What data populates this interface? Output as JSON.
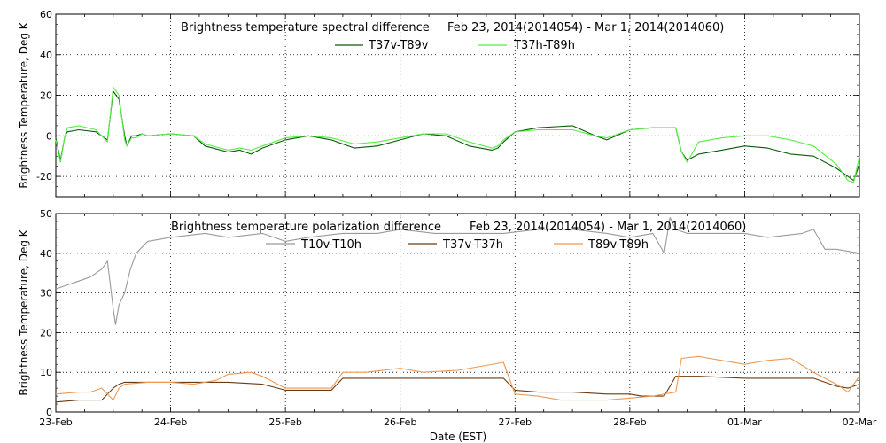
{
  "chart_data": [
    {
      "type": "line",
      "title": "Brightness temperature spectral difference",
      "date_range": "Feb 23, 2014(2014054) - Mar  1, 2014(2014060)",
      "xlabel": "",
      "ylabel": "Brightness Temperature, Deg K",
      "ylim": [
        -30,
        60
      ],
      "yticks": [
        "-20",
        "0",
        "20",
        "40",
        "60"
      ],
      "xlim": [
        0,
        7
      ],
      "grid": true,
      "legend_position": "top-center",
      "series": [
        {
          "name": "T37v-T89v",
          "color": "#0a5a0a",
          "x": [
            0,
            0.04,
            0.08,
            0.1,
            0.2,
            0.35,
            0.45,
            0.5,
            0.55,
            0.6,
            0.62,
            0.66,
            0.7,
            0.75,
            0.8,
            1.0,
            1.2,
            1.3,
            1.5,
            1.6,
            1.7,
            1.8,
            1.9,
            2.0,
            2.2,
            2.4,
            2.6,
            2.8,
            3.0,
            3.2,
            3.4,
            3.6,
            3.8,
            3.85,
            3.9,
            4.0,
            4.2,
            4.5,
            4.7,
            4.8,
            5.0,
            5.2,
            5.4,
            5.45,
            5.5,
            5.6,
            5.8,
            6.0,
            6.2,
            6.4,
            6.6,
            6.8,
            6.9,
            6.95,
            7.0
          ],
          "y": [
            -1,
            -12,
            0,
            2,
            3,
            2,
            -2,
            22,
            18,
            0,
            -5,
            0,
            0,
            1,
            0,
            1,
            0,
            -5,
            -8,
            -7,
            -9,
            -6,
            -4,
            -2,
            0,
            -2,
            -6,
            -5,
            -2,
            1,
            0,
            -5,
            -7,
            -6,
            -3,
            2,
            4,
            5,
            0,
            -2,
            3,
            4,
            4,
            -8,
            -12,
            -9,
            -7,
            -5,
            -6,
            -9,
            -10,
            -16,
            -20,
            -22,
            -14
          ]
        },
        {
          "name": "T37h-T89h",
          "color": "#55ee44",
          "x": [
            0,
            0.04,
            0.08,
            0.1,
            0.2,
            0.35,
            0.45,
            0.5,
            0.55,
            0.6,
            0.62,
            0.66,
            0.7,
            0.75,
            0.8,
            1.0,
            1.2,
            1.3,
            1.5,
            1.6,
            1.7,
            1.8,
            1.9,
            2.0,
            2.2,
            2.4,
            2.6,
            2.8,
            3.0,
            3.2,
            3.4,
            3.6,
            3.8,
            3.85,
            3.9,
            4.0,
            4.2,
            4.5,
            4.7,
            4.8,
            5.0,
            5.2,
            5.4,
            5.45,
            5.5,
            5.6,
            5.8,
            6.0,
            6.2,
            6.4,
            6.6,
            6.8,
            6.9,
            6.95,
            7.0
          ],
          "y": [
            -2,
            -13,
            0,
            4,
            5,
            3,
            -3,
            24,
            20,
            -2,
            -5,
            -1,
            -1,
            1,
            0,
            1,
            0,
            -4,
            -7,
            -6,
            -7,
            -5,
            -3,
            -1,
            0,
            -1,
            -4,
            -3,
            -1,
            1,
            1,
            -3,
            -6,
            -5,
            -2,
            2,
            3,
            3,
            0,
            -1,
            3,
            4,
            4,
            -8,
            -13,
            -3,
            -1,
            0,
            0,
            -2,
            -5,
            -14,
            -22,
            -23,
            -10
          ]
        }
      ]
    },
    {
      "type": "line",
      "title": "Brightness temperature polarization difference",
      "date_range": "Feb 23, 2014(2014054) - Mar  1, 2014(2014060)",
      "xlabel": "Date (EST)",
      "ylabel": "Brightness Temperature, Deg K",
      "ylim": [
        0,
        50
      ],
      "yticks": [
        "0",
        "10",
        "20",
        "30",
        "40",
        "50"
      ],
      "xlim": [
        0,
        7
      ],
      "xticks": [
        "23-Feb",
        "24-Feb",
        "25-Feb",
        "26-Feb",
        "27-Feb",
        "28-Feb",
        "01-Mar",
        "02-Mar"
      ],
      "grid": true,
      "legend_position": "top-center",
      "series": [
        {
          "name": "T10v-T10h",
          "color": "#9a9a9a",
          "x": [
            0,
            0.1,
            0.2,
            0.3,
            0.4,
            0.45,
            0.5,
            0.52,
            0.55,
            0.6,
            0.65,
            0.7,
            0.8,
            1.0,
            1.3,
            1.5,
            1.8,
            2.0,
            2.2,
            2.5,
            2.8,
            3.0,
            3.3,
            3.6,
            3.9,
            4.2,
            4.5,
            4.8,
            5.0,
            5.2,
            5.3,
            5.35,
            5.4,
            5.5,
            5.8,
            6.0,
            6.2,
            6.5,
            6.6,
            6.7,
            6.8,
            7.0
          ],
          "y": [
            31,
            32,
            33,
            34,
            36,
            38,
            26,
            22,
            27,
            30,
            36,
            40,
            43,
            44,
            45,
            44,
            45,
            43,
            44,
            45,
            45,
            46,
            45,
            45,
            45,
            46,
            46,
            45,
            44,
            45,
            40,
            49,
            46,
            45,
            45,
            45,
            44,
            45,
            46,
            41,
            41,
            40
          ]
        },
        {
          "name": "T37v-T37h",
          "color": "#6b3a10",
          "x": [
            0,
            0.2,
            0.4,
            0.5,
            0.55,
            0.6,
            0.8,
            1.0,
            1.2,
            1.5,
            1.8,
            2.0,
            2.2,
            2.4,
            2.5,
            2.7,
            3.0,
            3.3,
            3.6,
            3.9,
            4.0,
            4.2,
            4.5,
            4.8,
            5.0,
            5.1,
            5.3,
            5.4,
            5.6,
            6.0,
            6.3,
            6.6,
            6.8,
            6.9,
            7.0
          ],
          "y": [
            2.5,
            3,
            3,
            6,
            7,
            7.5,
            7.5,
            7.5,
            7.5,
            7.5,
            7,
            5.5,
            5.5,
            5.5,
            8.5,
            8.5,
            8.5,
            8.5,
            8.5,
            8.5,
            5.5,
            5,
            5,
            4.5,
            4.5,
            4,
            4,
            9,
            9,
            8.5,
            8.5,
            8.5,
            6.5,
            6,
            7
          ]
        },
        {
          "name": "T89v-T89h",
          "color": "#ee9955",
          "x": [
            0,
            0.2,
            0.3,
            0.4,
            0.5,
            0.55,
            0.6,
            0.8,
            1.0,
            1.2,
            1.4,
            1.5,
            1.7,
            1.8,
            2.0,
            2.2,
            2.4,
            2.5,
            2.7,
            3.0,
            3.2,
            3.5,
            3.7,
            3.9,
            4.0,
            4.2,
            4.4,
            4.6,
            4.8,
            5.0,
            5.2,
            5.4,
            5.45,
            5.6,
            5.8,
            6.0,
            6.2,
            6.4,
            6.6,
            6.8,
            6.9,
            7.0
          ],
          "y": [
            4.5,
            5,
            5,
            6,
            3,
            6,
            7,
            7.5,
            7.5,
            7,
            8,
            9.5,
            10,
            9,
            6,
            6,
            6,
            10,
            10,
            11,
            10,
            10.5,
            11.5,
            12.5,
            4.5,
            4,
            3,
            3,
            3,
            3.5,
            4,
            5,
            13.5,
            14,
            13,
            12,
            13,
            13.5,
            10,
            7,
            5,
            9
          ]
        }
      ]
    }
  ]
}
